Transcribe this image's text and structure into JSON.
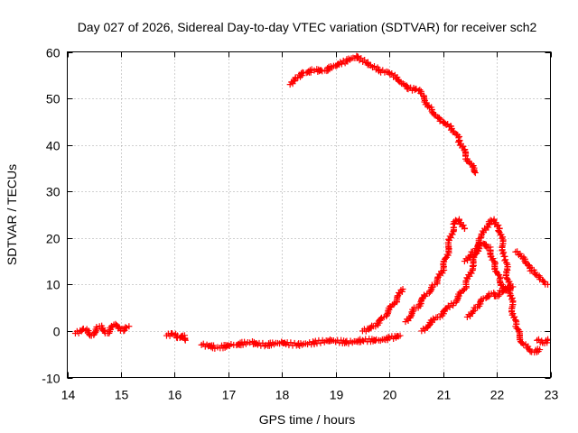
{
  "chart_data": {
    "type": "scatter",
    "title": "Day 027 of 2026, Sidereal Day-to-day VTEC variation (SDTVAR) for receiver sch2",
    "xlabel": "GPS time / hours",
    "ylabel": "SDTVAR / TECUs",
    "xlim": [
      14,
      23
    ],
    "ylim": [
      -10,
      60
    ],
    "grid": true,
    "x_ticks": [
      "14",
      "15",
      "16",
      "17",
      "18",
      "19",
      "20",
      "21",
      "22",
      "23"
    ],
    "y_ticks": [
      "-10",
      "0",
      "10",
      "20",
      "30",
      "40",
      "50",
      "60"
    ],
    "marker": "plus",
    "color": "#ff0000",
    "series": [
      {
        "name": "cluster-14-15",
        "x": [
          14.15,
          14.3,
          14.45,
          14.6,
          14.75,
          14.9,
          15.05,
          15.15
        ],
        "y": [
          -0.5,
          0.5,
          -1,
          1,
          -0.5,
          1.5,
          0,
          1
        ]
      },
      {
        "name": "cluster-16",
        "x": [
          15.85,
          15.95,
          16.05,
          16.15,
          16.2
        ],
        "y": [
          -1,
          -0.5,
          -1.5,
          -1,
          -2
        ]
      },
      {
        "name": "baseline",
        "x": [
          16.5,
          16.8,
          17.1,
          17.4,
          17.7,
          18.0,
          18.3,
          18.6,
          18.9,
          19.2,
          19.5,
          19.8,
          20.0,
          20.2
        ],
        "y": [
          -3,
          -3.5,
          -3,
          -2.5,
          -3,
          -2.5,
          -3,
          -2.5,
          -2,
          -2.5,
          -2,
          -2,
          -1.5,
          -1
        ]
      },
      {
        "name": "high-arc",
        "x": [
          18.15,
          18.25,
          18.4,
          18.6,
          18.8,
          19.0,
          19.2,
          19.4,
          19.6,
          19.8,
          20.0,
          20.2,
          20.35,
          20.5,
          20.6,
          20.75,
          20.9,
          21.0,
          21.15,
          21.3,
          21.45,
          21.6
        ],
        "y": [
          53,
          54.5,
          55.5,
          56,
          56,
          57,
          58,
          59,
          57.5,
          56,
          55.5,
          53.5,
          52,
          52,
          51,
          48,
          46,
          45,
          44,
          41,
          37,
          34
        ]
      },
      {
        "name": "rise-20",
        "x": [
          19.5,
          19.7,
          19.9,
          20.1,
          20.25
        ],
        "y": [
          0,
          1,
          3,
          6,
          9
        ]
      },
      {
        "name": "peak-21",
        "x": [
          20.3,
          20.5,
          20.7,
          20.85,
          21.0,
          21.1,
          21.2,
          21.3,
          21.4
        ],
        "y": [
          2,
          5,
          8,
          10,
          13,
          18,
          23,
          24,
          22
        ]
      },
      {
        "name": "peak-22",
        "x": [
          20.6,
          20.9,
          21.2,
          21.4,
          21.55,
          21.7,
          21.85,
          21.95,
          22.05,
          22.15,
          22.25,
          22.35,
          22.5,
          22.65,
          22.8
        ],
        "y": [
          0,
          3,
          6,
          9,
          14,
          20,
          23,
          24,
          22,
          16,
          8,
          1,
          -3,
          -4.5,
          -4
        ]
      },
      {
        "name": "mid-21-22",
        "x": [
          21.4,
          21.55,
          21.7,
          21.85,
          21.95,
          22.05,
          22.15,
          22.25
        ],
        "y": [
          15,
          17,
          19,
          18,
          15,
          11,
          9,
          9
        ]
      },
      {
        "name": "low-tail",
        "x": [
          21.45,
          21.6,
          21.75,
          21.9,
          22.0,
          22.1,
          22.2,
          22.3
        ],
        "y": [
          3,
          5,
          7,
          8,
          7.5,
          8.5,
          9,
          9.5
        ]
      },
      {
        "name": "descent-23",
        "x": [
          22.35,
          22.45,
          22.55,
          22.65,
          22.75,
          22.85,
          22.95
        ],
        "y": [
          17,
          16,
          14.5,
          13,
          12,
          11,
          10
        ]
      },
      {
        "name": "end-tail",
        "x": [
          22.75,
          22.85,
          22.95
        ],
        "y": [
          -2,
          -2.5,
          -2
        ]
      }
    ]
  }
}
